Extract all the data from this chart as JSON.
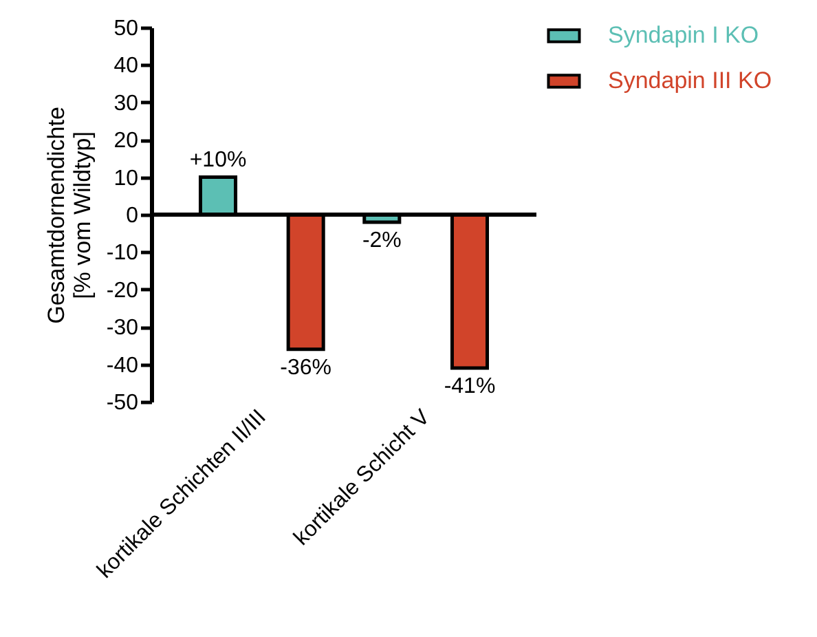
{
  "chart_data": {
    "type": "bar",
    "ylabel": "Gesamtdornendichte\n[% vom Wildtyp]",
    "categories": [
      "kortikale Schichten II/III",
      "kortikale Schicht V"
    ],
    "series": [
      {
        "name": "Syndapin I  KO",
        "color": "#5cbfb4",
        "values": [
          10,
          -2
        ],
        "value_labels": [
          "+10%",
          "-2%"
        ]
      },
      {
        "name": "Syndapin III  KO",
        "color": "#d1442a",
        "values": [
          -36,
          -41
        ],
        "value_labels": [
          "-36%",
          "-41%"
        ]
      }
    ],
    "ylim": [
      -50,
      50
    ],
    "yticks": [
      -50,
      -40,
      -30,
      -20,
      -10,
      0,
      10,
      20,
      30,
      40,
      50
    ],
    "grid": false,
    "ref_lines": [
      {
        "axis": "y",
        "value": 0
      }
    ],
    "legend": "top right"
  }
}
